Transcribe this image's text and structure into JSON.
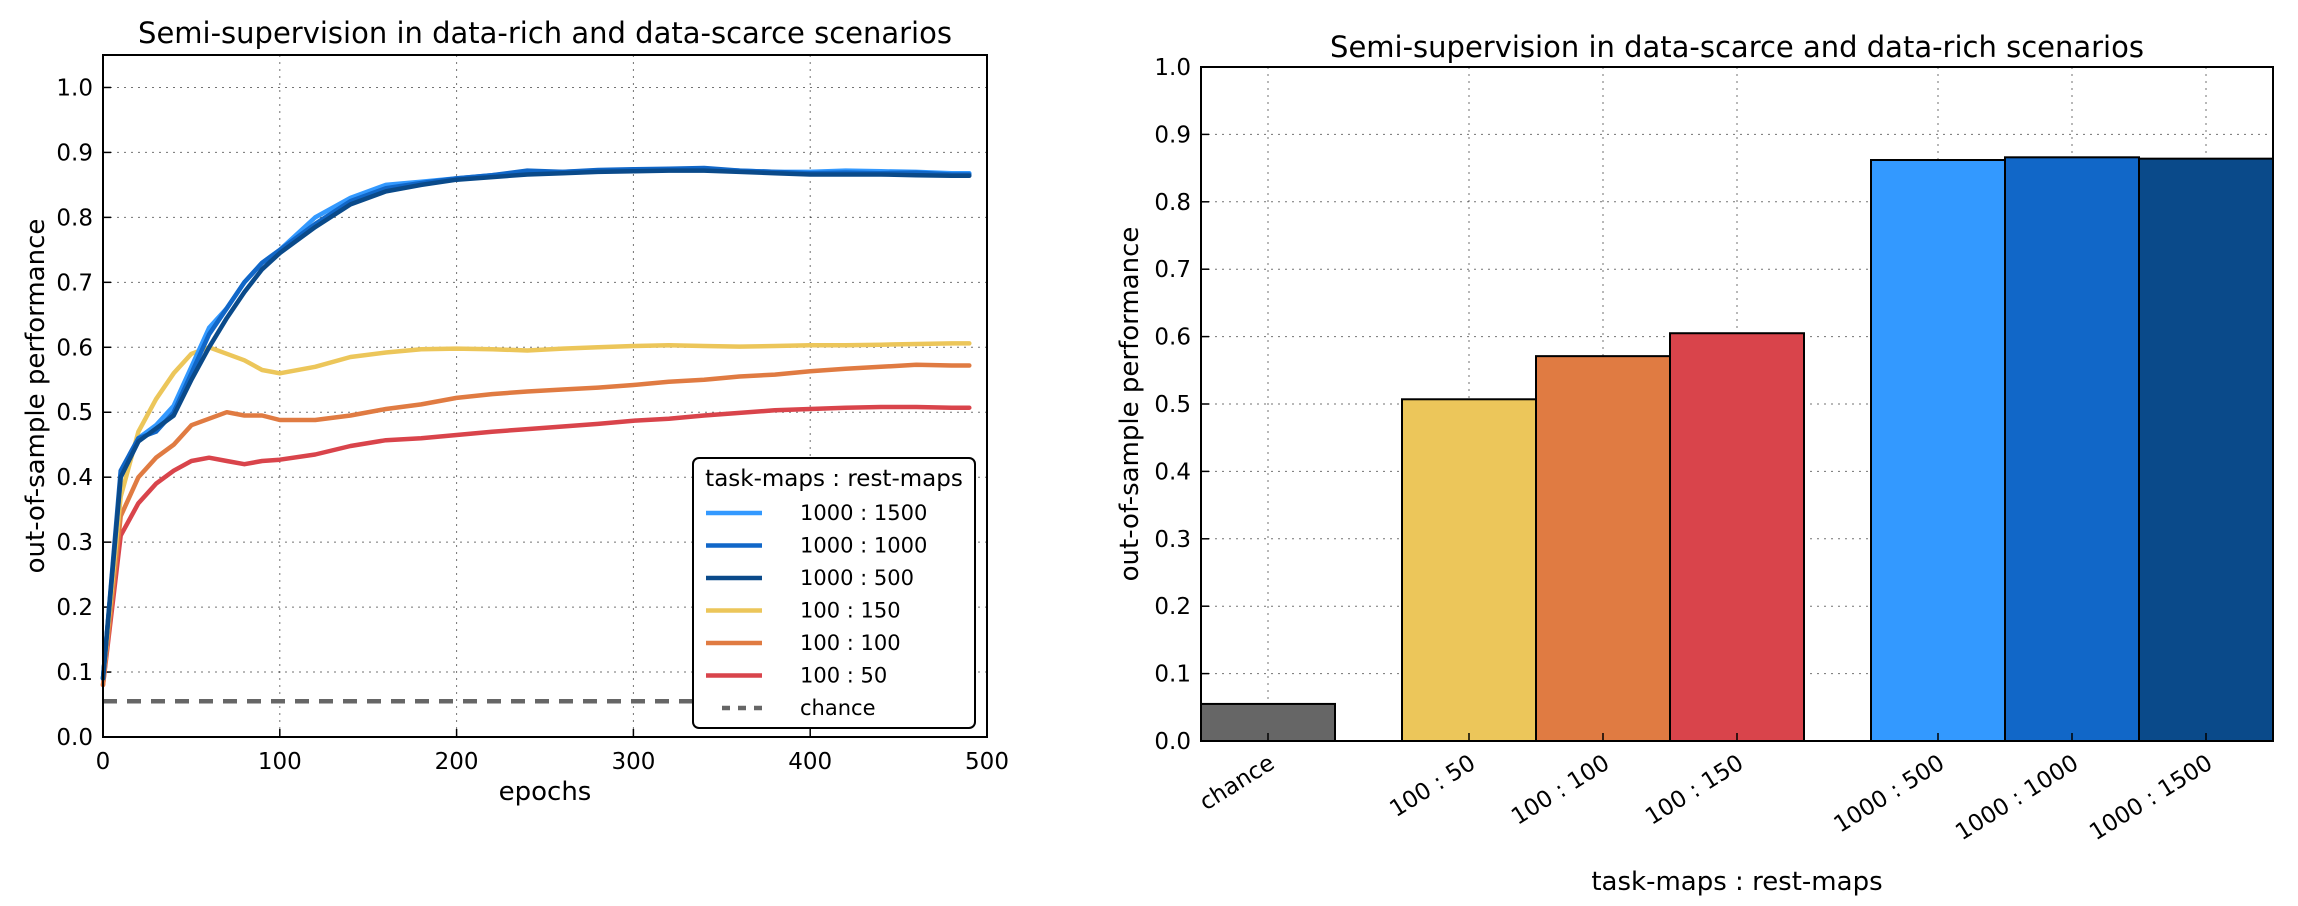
{
  "chart_data": [
    {
      "type": "line",
      "title": "Semi-supervision in data-rich and data-scarce scenarios",
      "xlabel": "epochs",
      "ylabel": "out-of-sample performance",
      "xlim": [
        0,
        500
      ],
      "ylim": [
        0,
        1.05
      ],
      "xticks": [
        "0",
        "100",
        "200",
        "300",
        "400",
        "500"
      ],
      "yticks": [
        "0.0",
        "0.1",
        "0.2",
        "0.3",
        "0.4",
        "0.5",
        "0.6",
        "0.7",
        "0.8",
        "0.9",
        "1.0"
      ],
      "grid": true,
      "legend_title": "task-maps : rest-maps",
      "legend_position": "lower-right",
      "x": [
        0,
        10,
        20,
        30,
        40,
        50,
        60,
        70,
        80,
        90,
        100,
        120,
        140,
        160,
        180,
        200,
        220,
        240,
        260,
        280,
        300,
        320,
        340,
        360,
        380,
        400,
        420,
        440,
        460,
        480,
        490
      ],
      "series": [
        {
          "name": "1000 : 1500",
          "color": "#3399ff",
          "style": "solid",
          "values": [
            0.09,
            0.4,
            0.46,
            0.48,
            0.51,
            0.57,
            0.63,
            0.66,
            0.7,
            0.73,
            0.75,
            0.8,
            0.83,
            0.85,
            0.855,
            0.86,
            0.865,
            0.87,
            0.87,
            0.872,
            0.872,
            0.873,
            0.874,
            0.872,
            0.87,
            0.87,
            0.872,
            0.871,
            0.87,
            0.868,
            0.868
          ]
        },
        {
          "name": "1000 : 1000",
          "color": "#1167c8",
          "style": "solid",
          "values": [
            0.09,
            0.41,
            0.46,
            0.47,
            0.5,
            0.56,
            0.62,
            0.66,
            0.7,
            0.73,
            0.75,
            0.79,
            0.825,
            0.845,
            0.853,
            0.86,
            0.865,
            0.872,
            0.87,
            0.873,
            0.874,
            0.875,
            0.876,
            0.872,
            0.87,
            0.868,
            0.869,
            0.868,
            0.869,
            0.866,
            0.866
          ]
        },
        {
          "name": "1000 : 500",
          "color": "#0a4a8a",
          "style": "solid",
          "values": [
            0.09,
            0.4,
            0.455,
            0.475,
            0.495,
            0.55,
            0.6,
            0.645,
            0.685,
            0.72,
            0.745,
            0.785,
            0.82,
            0.84,
            0.85,
            0.858,
            0.862,
            0.866,
            0.868,
            0.87,
            0.871,
            0.872,
            0.872,
            0.87,
            0.868,
            0.866,
            0.866,
            0.866,
            0.865,
            0.864,
            0.864
          ]
        },
        {
          "name": "100 : 150",
          "color": "#ecc65a",
          "style": "solid",
          "values": [
            0.09,
            0.37,
            0.47,
            0.52,
            0.56,
            0.59,
            0.6,
            0.59,
            0.58,
            0.565,
            0.56,
            0.57,
            0.585,
            0.592,
            0.597,
            0.598,
            0.597,
            0.595,
            0.598,
            0.6,
            0.602,
            0.603,
            0.602,
            0.601,
            0.602,
            0.603,
            0.603,
            0.604,
            0.605,
            0.606,
            0.606
          ]
        },
        {
          "name": "100 : 100",
          "color": "#e07b42",
          "style": "solid",
          "values": [
            0.08,
            0.34,
            0.4,
            0.43,
            0.45,
            0.48,
            0.49,
            0.5,
            0.495,
            0.495,
            0.488,
            0.488,
            0.495,
            0.505,
            0.512,
            0.522,
            0.528,
            0.532,
            0.535,
            0.538,
            0.542,
            0.547,
            0.55,
            0.555,
            0.558,
            0.563,
            0.567,
            0.57,
            0.573,
            0.572,
            0.572
          ]
        },
        {
          "name": "100 : 50",
          "color": "#d9444b",
          "style": "solid",
          "values": [
            0.08,
            0.31,
            0.36,
            0.39,
            0.41,
            0.425,
            0.43,
            0.425,
            0.42,
            0.425,
            0.427,
            0.435,
            0.448,
            0.457,
            0.46,
            0.465,
            0.47,
            0.474,
            0.478,
            0.482,
            0.487,
            0.49,
            0.495,
            0.499,
            0.503,
            0.505,
            0.507,
            0.508,
            0.508,
            0.507,
            0.507
          ]
        },
        {
          "name": "chance",
          "color": "#666666",
          "style": "dashed",
          "values": [
            0.055,
            0.055,
            0.055,
            0.055,
            0.055,
            0.055,
            0.055,
            0.055,
            0.055,
            0.055,
            0.055,
            0.055,
            0.055,
            0.055,
            0.055,
            0.055,
            0.055,
            0.055,
            0.055,
            0.055,
            0.055,
            0.055,
            0.055,
            0.055,
            0.055,
            0.055,
            0.055,
            0.055,
            0.055,
            0.055,
            0.055
          ]
        }
      ]
    },
    {
      "type": "bar",
      "title": "Semi-supervision in data-scarce and data-rich scenarios",
      "xlabel": "task-maps : rest-maps",
      "ylabel": "out-of-sample performance",
      "ylim": [
        0,
        1.0
      ],
      "yticks": [
        "0.0",
        "0.1",
        "0.2",
        "0.3",
        "0.4",
        "0.5",
        "0.6",
        "0.7",
        "0.8",
        "0.9",
        "1.0"
      ],
      "grid": true,
      "categories": [
        "chance",
        "100 : 50",
        "100 : 100",
        "100 : 150",
        "1000 : 500",
        "1000 : 1000",
        "1000 : 1500"
      ],
      "values": [
        0.055,
        0.507,
        0.571,
        0.605,
        0.862,
        0.866,
        0.864
      ],
      "colors": [
        "#666666",
        "#ecc65a",
        "#e07b42",
        "#d9444b",
        "#3399ff",
        "#1167c8",
        "#0a4a8a"
      ]
    }
  ]
}
